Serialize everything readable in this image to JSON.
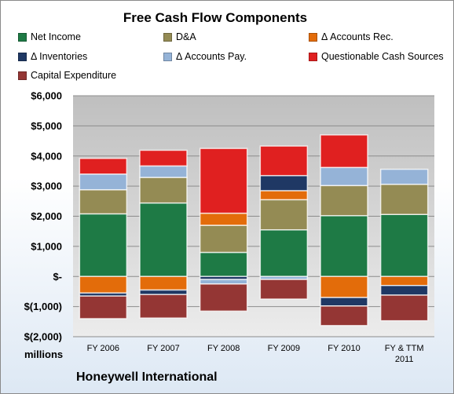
{
  "chart_data": {
    "type": "bar",
    "stacked": true,
    "title": "Free Cash Flow Components",
    "unit_label": "millions",
    "footer": "Honeywell International",
    "categories": [
      "FY 2006",
      "FY 2007",
      "FY 2008",
      "FY 2009",
      "FY 2010",
      [
        "FY & TTM",
        "2011"
      ]
    ],
    "ylim": [
      -2000,
      6000
    ],
    "yticks": [
      {
        "value": 6000,
        "label": "$6,000"
      },
      {
        "value": 5000,
        "label": "$5,000"
      },
      {
        "value": 4000,
        "label": "$4,000"
      },
      {
        "value": 3000,
        "label": "$3,000"
      },
      {
        "value": 2000,
        "label": "$2,000"
      },
      {
        "value": 1000,
        "label": "$1,000"
      },
      {
        "value": 0,
        "label": "$-"
      },
      {
        "value": -1000,
        "label": "$(1,000)"
      },
      {
        "value": -2000,
        "label": "$(2,000)"
      }
    ],
    "grid": true,
    "legend_position": "top",
    "series": [
      {
        "name": "Net Income",
        "color": "#1e7a45",
        "values": [
          2080,
          2440,
          800,
          1550,
          2020,
          2060
        ]
      },
      {
        "name": "D&A",
        "color": "#948b54",
        "values": [
          800,
          850,
          900,
          1000,
          1000,
          1000
        ]
      },
      {
        "name": "Δ Accounts Rec.",
        "color": "#e36c0a",
        "values": [
          -550,
          -450,
          400,
          300,
          -700,
          -300
        ]
      },
      {
        "name": "Δ Inventories",
        "color": "#1f3864",
        "values": [
          -100,
          -150,
          -100,
          500,
          -280,
          -320
        ]
      },
      {
        "name": "Δ Accounts Pay.",
        "color": "#95b3d7",
        "values": [
          520,
          380,
          -150,
          -100,
          600,
          500
        ]
      },
      {
        "name": "Questionable Cash Sources",
        "color": "#e02020",
        "values": [
          520,
          520,
          2150,
          980,
          1080,
          0
        ]
      },
      {
        "name": "Capital Expenditure",
        "color": "#943634",
        "values": [
          -750,
          -780,
          -900,
          -650,
          -650,
          -850
        ]
      }
    ]
  }
}
